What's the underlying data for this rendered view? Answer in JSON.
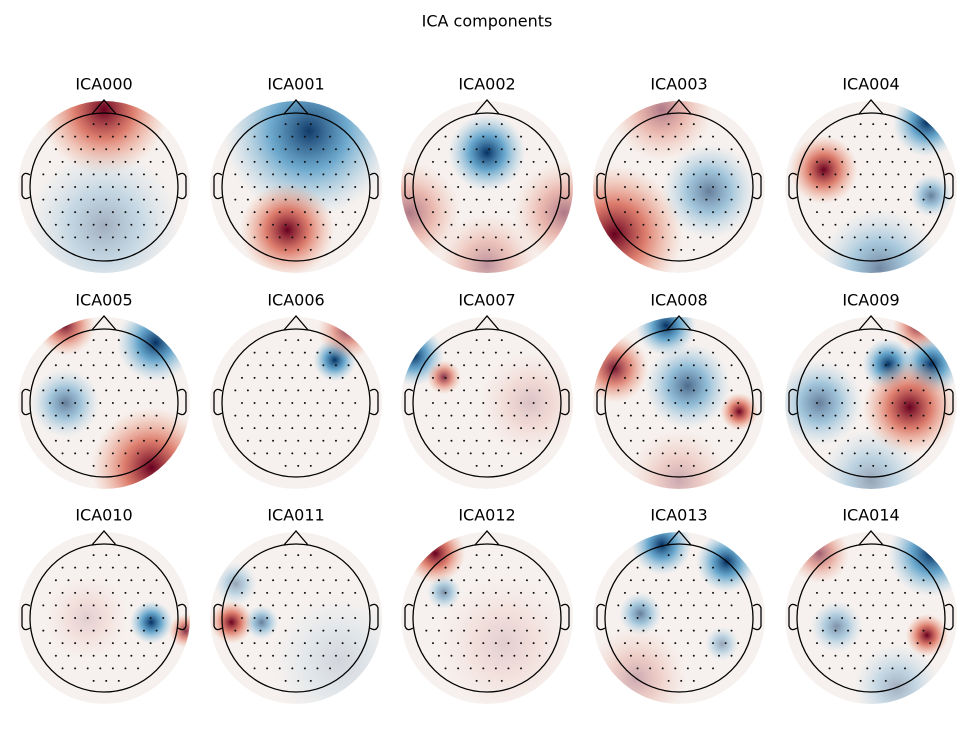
{
  "chart_data": {
    "type": "topomap",
    "title": "ICA components",
    "panels": [
      "ICA000",
      "ICA001",
      "ICA002",
      "ICA003",
      "ICA004",
      "ICA005",
      "ICA006",
      "ICA007",
      "ICA008",
      "ICA009",
      "ICA010",
      "ICA011",
      "ICA012",
      "ICA013",
      "ICA014"
    ]
  }
}
